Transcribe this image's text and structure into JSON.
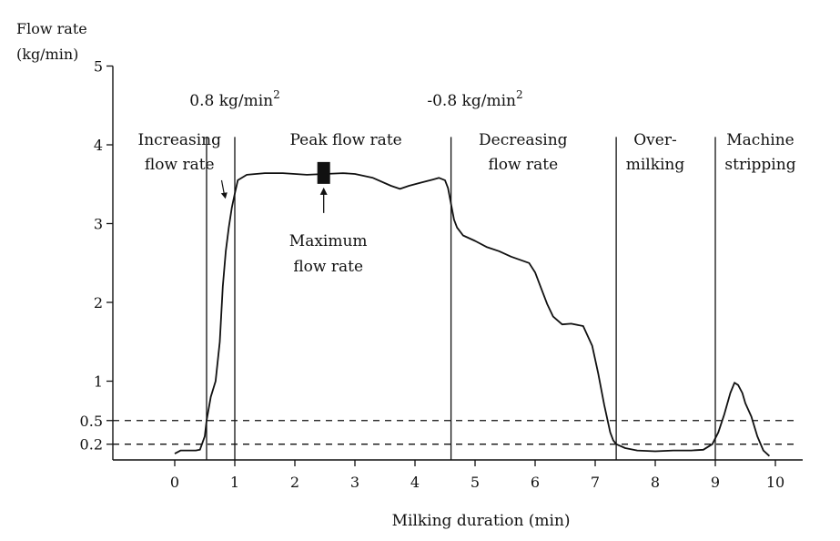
{
  "chart_data": {
    "type": "line",
    "ylabel_lines": [
      "Flow rate",
      "(kg/min)"
    ],
    "xlabel": "Milking duration (min)",
    "xlim": [
      -1,
      10.5
    ],
    "ylim": [
      0,
      5
    ],
    "x_ticks": [
      0,
      1,
      2,
      3,
      4,
      5,
      6,
      7,
      8,
      9,
      10
    ],
    "y_ticks": [
      {
        "value": 0.2,
        "label": "0.2"
      },
      {
        "value": 0.5,
        "label": "0.5"
      },
      {
        "value": 1,
        "label": "1"
      },
      {
        "value": 2,
        "label": "2"
      },
      {
        "value": 3,
        "label": "3"
      },
      {
        "value": 4,
        "label": "4"
      },
      {
        "value": 5,
        "label": "5"
      }
    ],
    "dashed_levels": [
      0.5,
      0.2
    ],
    "phase_boundaries": [
      0.53,
      1.0,
      4.6,
      7.35,
      9.0
    ],
    "phases": [
      {
        "lines": [
          "Increasing",
          "flow rate"
        ],
        "x": 0.08,
        "y": 4.0
      },
      {
        "lines": [
          "Peak flow rate"
        ],
        "x": 2.85,
        "y": 4.0
      },
      {
        "lines": [
          "Decreasing",
          "flow rate"
        ],
        "x": 5.8,
        "y": 4.0
      },
      {
        "lines": [
          "Over-",
          "milking"
        ],
        "x": 8.0,
        "y": 4.0
      },
      {
        "lines": [
          "Machine",
          "stripping"
        ],
        "x": 9.75,
        "y": 4.0
      }
    ],
    "slope_labels": [
      {
        "base": "0.8 kg/min",
        "sup": "2",
        "x": 1.0,
        "y": 4.5
      },
      {
        "base": "-0.8 kg/min",
        "sup": "2",
        "x": 5.0,
        "y": 4.5
      }
    ],
    "max_marker": {
      "x": 2.48,
      "y": 3.62
    },
    "max_label": [
      "Maximum",
      "flow rate"
    ],
    "series": [
      {
        "x": [
          0.0,
          0.1,
          0.2,
          0.28,
          0.35,
          0.42,
          0.5,
          0.53,
          0.6,
          0.68,
          0.75,
          0.8,
          0.85,
          0.9,
          0.95,
          1.0,
          1.05,
          1.2,
          1.5,
          1.8,
          2.0,
          2.2,
          2.5,
          2.8,
          3.0,
          3.3,
          3.6,
          3.75,
          3.9,
          4.1,
          4.3,
          4.4,
          4.5,
          4.55,
          4.6,
          4.65,
          4.7,
          4.8,
          5.0,
          5.2,
          5.4,
          5.6,
          5.75,
          5.9,
          6.0,
          6.1,
          6.2,
          6.3,
          6.45,
          6.6,
          6.8,
          6.95,
          7.05,
          7.15,
          7.25,
          7.3,
          7.35,
          7.5,
          7.7,
          8.0,
          8.3,
          8.6,
          8.8,
          8.95,
          9.05,
          9.15,
          9.25,
          9.32,
          9.38,
          9.45,
          9.5,
          9.6,
          9.7,
          9.8,
          9.9
        ],
        "y": [
          0.08,
          0.12,
          0.12,
          0.12,
          0.12,
          0.13,
          0.3,
          0.5,
          0.8,
          1.0,
          1.5,
          2.2,
          2.65,
          2.95,
          3.2,
          3.38,
          3.55,
          3.62,
          3.64,
          3.64,
          3.63,
          3.62,
          3.63,
          3.64,
          3.63,
          3.58,
          3.48,
          3.44,
          3.48,
          3.52,
          3.56,
          3.58,
          3.55,
          3.45,
          3.25,
          3.05,
          2.95,
          2.85,
          2.78,
          2.7,
          2.65,
          2.58,
          2.54,
          2.5,
          2.38,
          2.18,
          1.98,
          1.82,
          1.72,
          1.73,
          1.7,
          1.45,
          1.1,
          0.7,
          0.35,
          0.25,
          0.2,
          0.15,
          0.12,
          0.11,
          0.12,
          0.12,
          0.13,
          0.2,
          0.35,
          0.58,
          0.85,
          0.98,
          0.95,
          0.85,
          0.72,
          0.55,
          0.3,
          0.12,
          0.05
        ]
      }
    ]
  }
}
